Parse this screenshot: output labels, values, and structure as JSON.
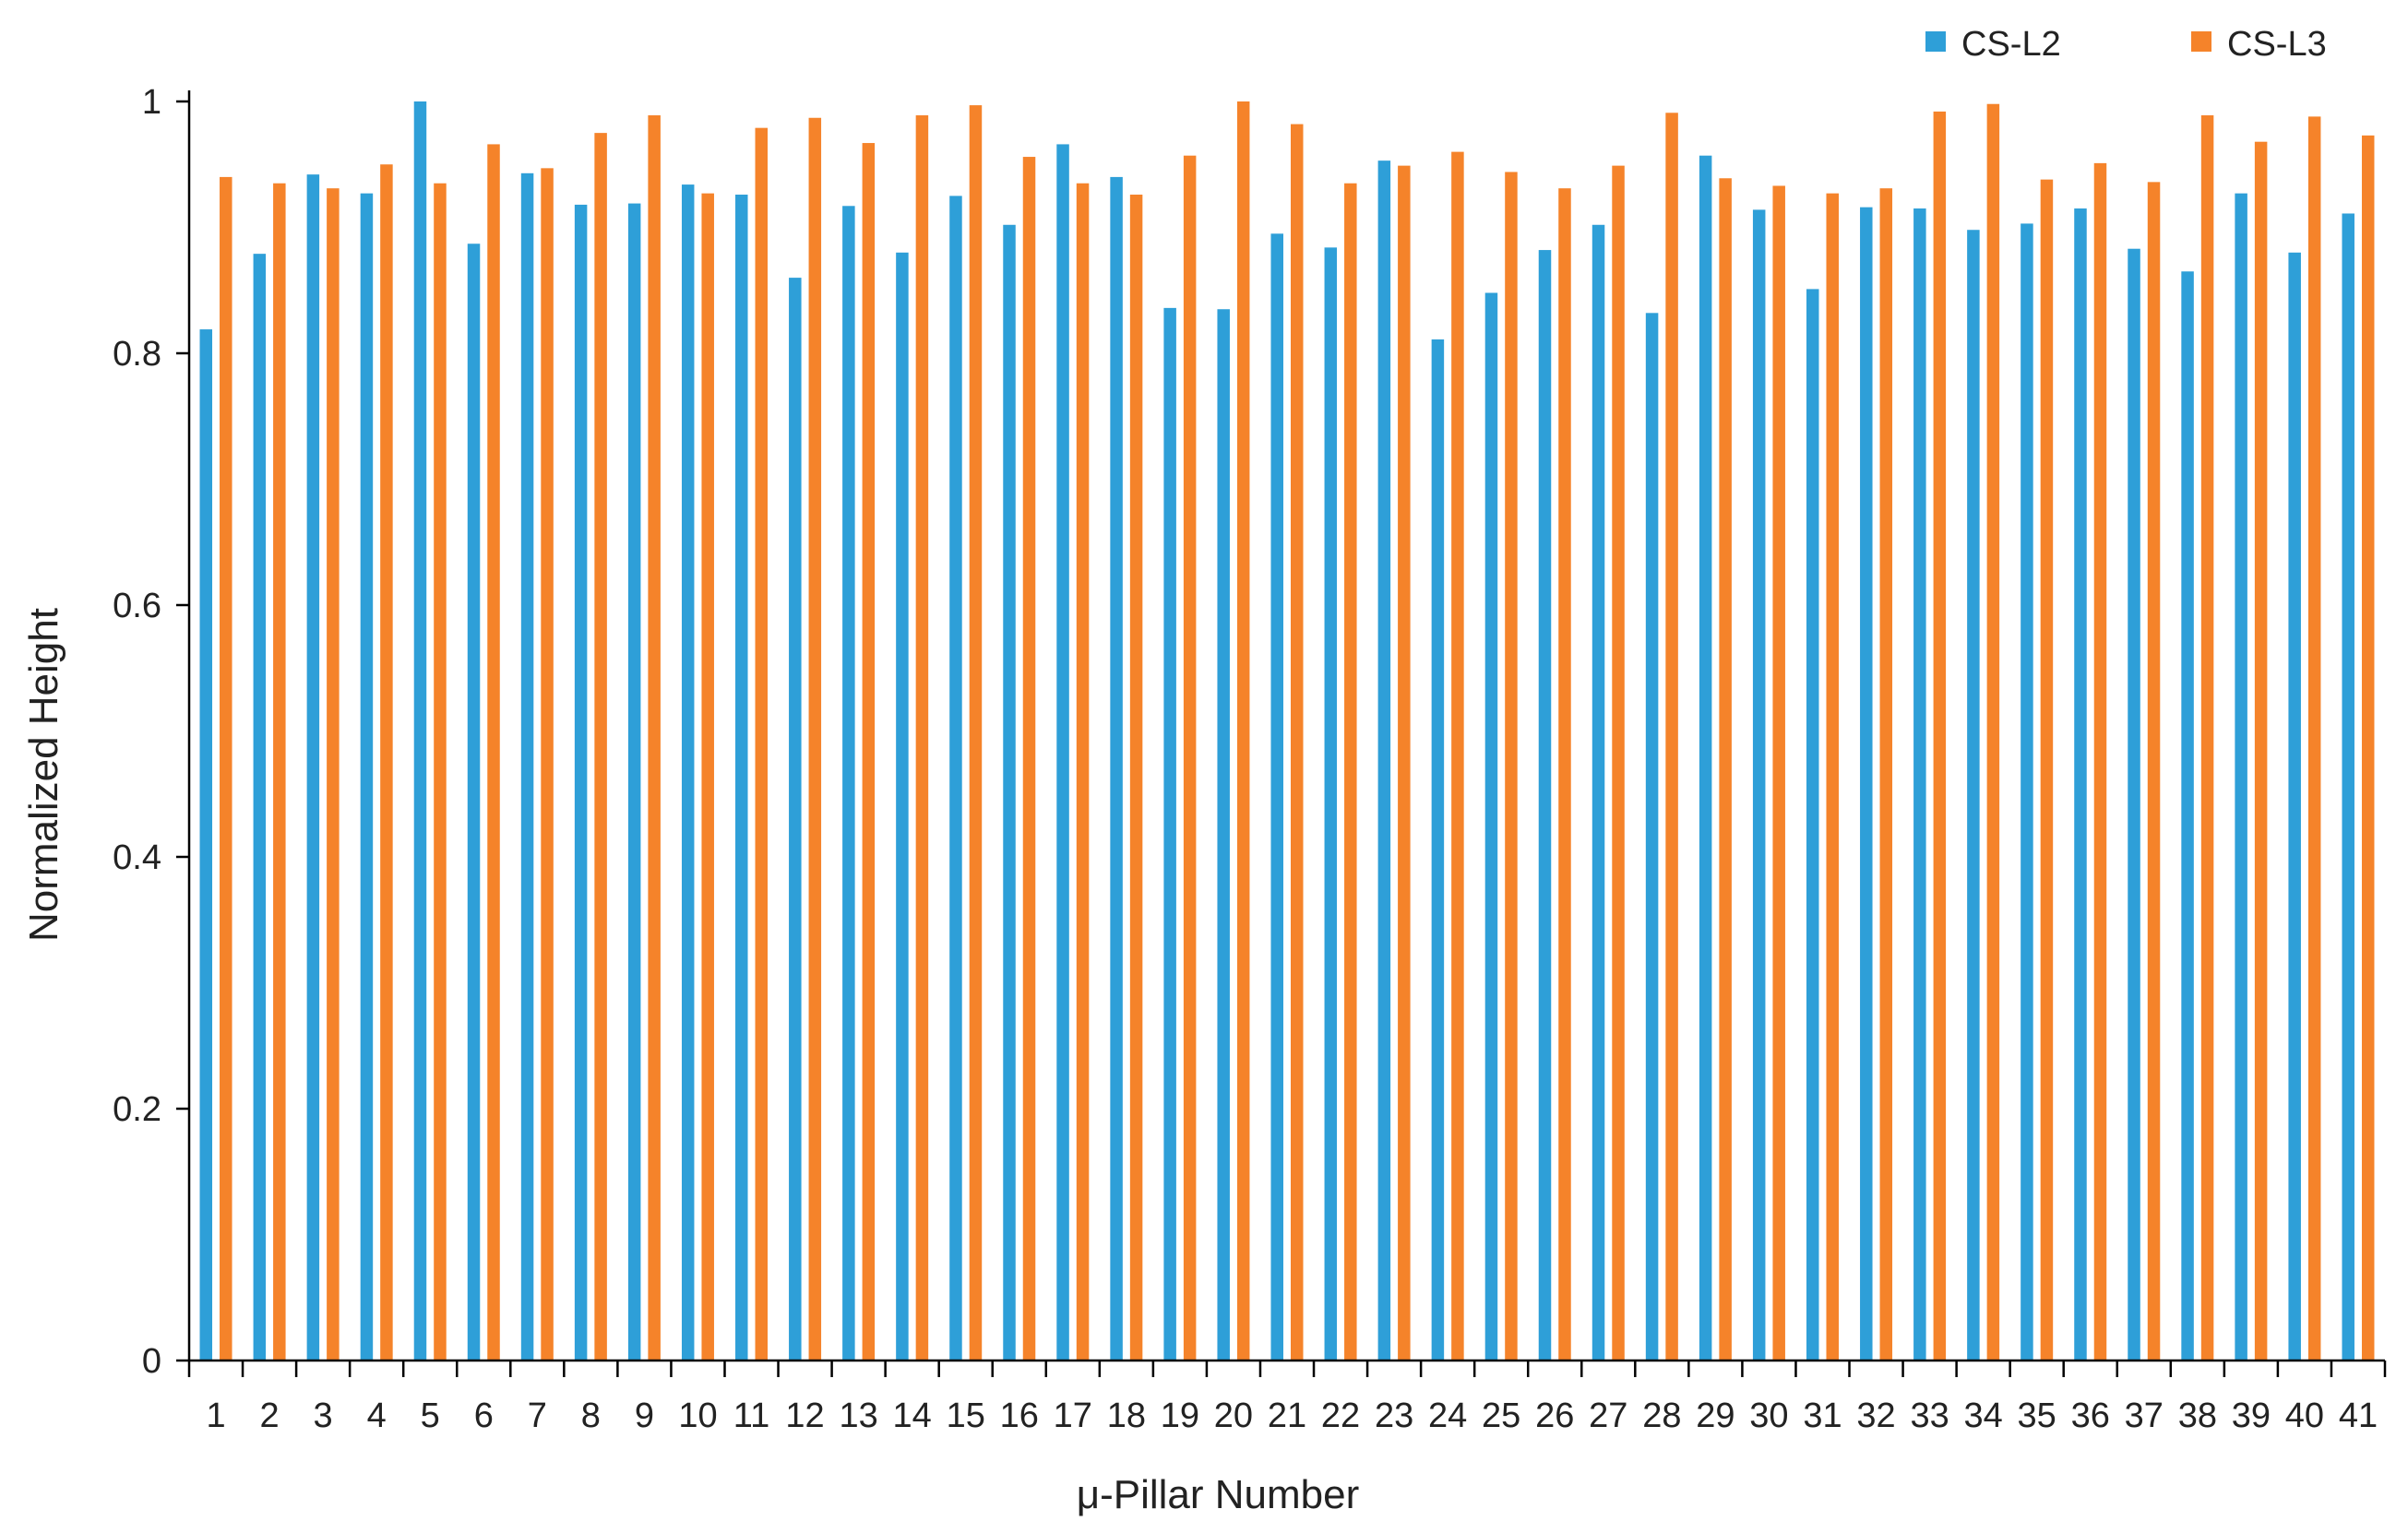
{
  "chart_data": {
    "type": "bar",
    "xlabel": "μ-Pillar Number",
    "ylabel": "Normalized Height",
    "ylim": [
      0,
      1
    ],
    "yticks": [
      0,
      0.2,
      0.4,
      0.6,
      0.8,
      1
    ],
    "ytick_labels": [
      "0",
      "0.2",
      "0.4",
      "0.6",
      "0.8",
      "1"
    ],
    "grid": false,
    "legend_position": "top-right",
    "categories": [
      "1",
      "2",
      "3",
      "4",
      "5",
      "6",
      "7",
      "8",
      "9",
      "10",
      "11",
      "12",
      "13",
      "14",
      "15",
      "16",
      "17",
      "18",
      "19",
      "20",
      "21",
      "22",
      "23",
      "24",
      "25",
      "26",
      "27",
      "28",
      "29",
      "30",
      "31",
      "32",
      "33",
      "34",
      "35",
      "36",
      "37",
      "38",
      "39",
      "40",
      "41"
    ],
    "series": [
      {
        "name": "CS-L2",
        "color": "#2e9fd8",
        "values": [
          0.819,
          0.879,
          0.942,
          0.927,
          1.0,
          0.887,
          0.943,
          0.918,
          0.919,
          0.934,
          0.926,
          0.86,
          0.917,
          0.88,
          0.925,
          0.902,
          0.966,
          0.94,
          0.836,
          0.835,
          0.895,
          0.884,
          0.953,
          0.811,
          0.848,
          0.882,
          0.902,
          0.832,
          0.957,
          0.914,
          0.851,
          0.916,
          0.915,
          0.898,
          0.903,
          0.915,
          0.883,
          0.865,
          0.927,
          0.88,
          0.911
        ]
      },
      {
        "name": "CS-L3",
        "color": "#f5832a",
        "values": [
          0.94,
          0.935,
          0.931,
          0.95,
          0.935,
          0.966,
          0.947,
          0.975,
          0.989,
          0.927,
          0.979,
          0.987,
          0.967,
          0.989,
          0.997,
          0.956,
          0.935,
          0.926,
          0.957,
          1.0,
          0.982,
          0.935,
          0.949,
          0.96,
          0.944,
          0.931,
          0.949,
          0.991,
          0.939,
          0.933,
          0.927,
          0.931,
          0.992,
          0.998,
          0.938,
          0.951,
          0.936,
          0.989,
          0.968,
          0.988,
          0.973
        ]
      }
    ]
  }
}
